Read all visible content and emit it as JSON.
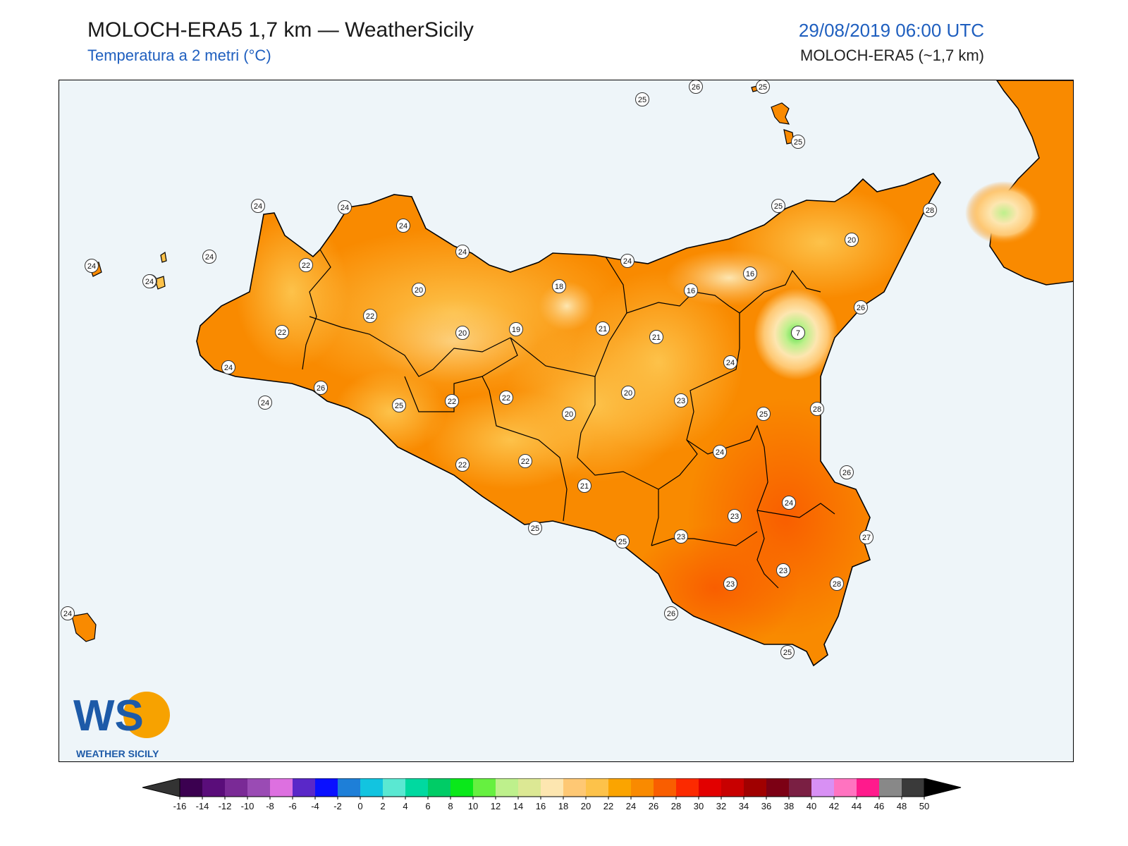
{
  "header": {
    "title": "MOLOCH-ERA5 1,7 km — WeatherSicily",
    "subtitle": "Temperatura a 2 metri (°C)",
    "datetime": "29/08/2019 06:00 UTC",
    "model": "MOLOCH-ERA5 (~1,7 km)"
  },
  "map": {
    "variable": "Temperatura a 2 metri",
    "unit": "°C",
    "region": "Sicily",
    "station_values": [
      {
        "label": "25"
      },
      {
        "label": "26"
      },
      {
        "label": "25"
      },
      {
        "label": "25"
      },
      {
        "label": "24"
      },
      {
        "label": "24"
      },
      {
        "label": "24"
      },
      {
        "label": "24"
      },
      {
        "label": "24"
      },
      {
        "label": "24"
      },
      {
        "label": "24"
      },
      {
        "label": "22"
      },
      {
        "label": "20"
      },
      {
        "label": "18"
      },
      {
        "label": "24"
      },
      {
        "label": "25"
      },
      {
        "label": "28"
      },
      {
        "label": "20"
      },
      {
        "label": "16"
      },
      {
        "label": "16"
      },
      {
        "label": "26"
      },
      {
        "label": "22"
      },
      {
        "label": "22"
      },
      {
        "label": "20"
      },
      {
        "label": "19"
      },
      {
        "label": "21"
      },
      {
        "label": "21"
      },
      {
        "label": "7"
      },
      {
        "label": "24"
      },
      {
        "label": "26"
      },
      {
        "label": "25"
      },
      {
        "label": "22"
      },
      {
        "label": "22"
      },
      {
        "label": "20"
      },
      {
        "label": "20"
      },
      {
        "label": "23"
      },
      {
        "label": "25"
      },
      {
        "label": "28"
      },
      {
        "label": "24"
      },
      {
        "label": "24"
      },
      {
        "label": "22"
      },
      {
        "label": "22"
      },
      {
        "label": "21"
      },
      {
        "label": "26"
      },
      {
        "label": "24"
      },
      {
        "label": "23"
      },
      {
        "label": "25"
      },
      {
        "label": "25"
      },
      {
        "label": "23"
      },
      {
        "label": "27"
      },
      {
        "label": "23"
      },
      {
        "label": "23"
      },
      {
        "label": "28"
      },
      {
        "label": "26"
      },
      {
        "label": "25"
      },
      {
        "label": "24"
      },
      {
        "label": "24"
      },
      {
        "label": "24"
      }
    ]
  },
  "colorbar": {
    "ticks": [
      "-16",
      "-14",
      "-12",
      "-10",
      "-8",
      "-6",
      "-4",
      "-2",
      "0",
      "2",
      "4",
      "6",
      "8",
      "10",
      "12",
      "14",
      "16",
      "18",
      "20",
      "22",
      "24",
      "26",
      "28",
      "30",
      "32",
      "34",
      "36",
      "38",
      "40",
      "42",
      "44",
      "46",
      "48",
      "50"
    ],
    "colors": [
      "#3b0050",
      "#5a0d7a",
      "#7a2a96",
      "#9a4bb4",
      "#dd70e0",
      "#5a28c8",
      "#0a10ff",
      "#1e7fd8",
      "#12c4e0",
      "#5ae8d2",
      "#00d9a0",
      "#00cc66",
      "#0ae81a",
      "#66f040",
      "#bef08c",
      "#dce894",
      "#fde6b0",
      "#fec874",
      "#fdc24a",
      "#fba400",
      "#f98a00",
      "#f95e00",
      "#fc2a00",
      "#e20000",
      "#c80000",
      "#a00000",
      "#7c0014",
      "#7a1f43",
      "#d890f4",
      "#ff73c0",
      "#ff1a8c",
      "#888888",
      "#3a3a3a"
    ]
  },
  "logo": {
    "text": "WEATHER SICILY",
    "mark": "WS"
  }
}
